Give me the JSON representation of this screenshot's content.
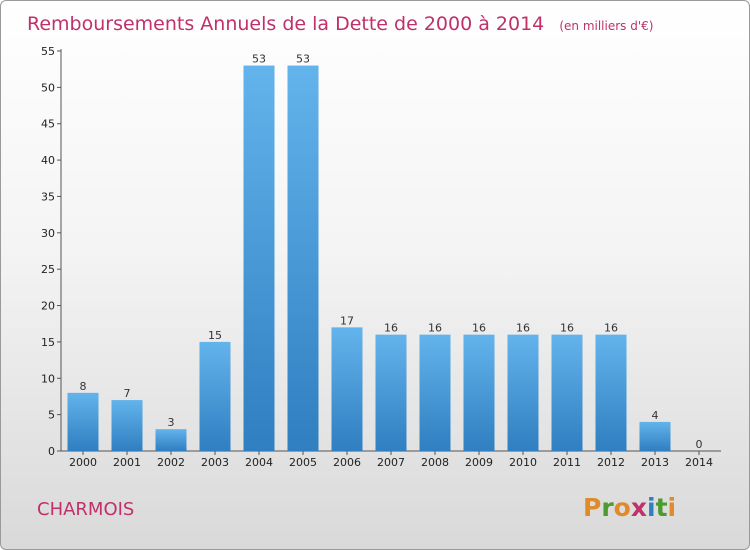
{
  "title": "Remboursements Annuels de la Dette de 2000 à 2014",
  "unit": "(en milliers d'€)",
  "commune": "CHARMOIS",
  "logo": "Proxiti",
  "colors": {
    "title": "#c0306a",
    "bar_light": "#63b3ec",
    "bar_dark": "#2f7fc1",
    "logo_letters": [
      "#e08a2a",
      "#4d9a2f",
      "#e08a2a",
      "#c0306a",
      "#2f7fc1",
      "#4d9a2f",
      "#e08a2a"
    ]
  },
  "chart_data": {
    "type": "bar",
    "categories": [
      "2000",
      "2001",
      "2002",
      "2003",
      "2004",
      "2005",
      "2006",
      "2007",
      "2008",
      "2009",
      "2010",
      "2011",
      "2012",
      "2013",
      "2014"
    ],
    "values": [
      8,
      7,
      3,
      15,
      53,
      53,
      17,
      16,
      16,
      16,
      16,
      16,
      16,
      4,
      0
    ],
    "ylim": [
      0,
      55
    ],
    "yticks": [
      0,
      5,
      10,
      15,
      20,
      25,
      30,
      35,
      40,
      45,
      50,
      55
    ],
    "grid": false,
    "legend": "none"
  }
}
